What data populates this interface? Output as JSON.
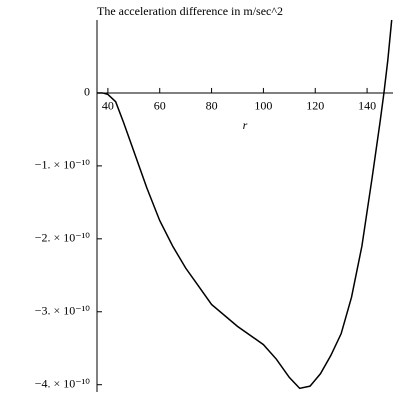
{
  "chart_data": {
    "type": "line",
    "title": "The acceleration difference in m/sec^2",
    "x_label": "r",
    "x": [
      36,
      38,
      40,
      43,
      46,
      50,
      55,
      60,
      65,
      70,
      75,
      80,
      90,
      100,
      105,
      110,
      114,
      118,
      122,
      126,
      130,
      134,
      138,
      142,
      145,
      146.5,
      148,
      149.5
    ],
    "series": [
      {
        "name": "acceleration difference",
        "color": "#000000",
        "values": [
          0,
          0,
          -2e-12,
          -1.2e-11,
          -4e-11,
          -8e-11,
          -1.3e-10,
          -1.75e-10,
          -2.1e-10,
          -2.4e-10,
          -2.65e-10,
          -2.9e-10,
          -3.2e-10,
          -3.45e-10,
          -3.65e-10,
          -3.9e-10,
          -4.05e-10,
          -4.02e-10,
          -3.85e-10,
          -3.6e-10,
          -3.3e-10,
          -2.8e-10,
          -2.1e-10,
          -1.15e-10,
          -4e-11,
          0,
          4.5e-11,
          1e-10
        ]
      }
    ],
    "xlim": [
      35.8,
      150
    ],
    "ylim": [
      -4.1e-10,
      1e-10
    ],
    "xticks": [
      40,
      60,
      80,
      100,
      120,
      140
    ],
    "yticks": [
      0,
      {
        "value": -1e-10,
        "label": "−1. × 10⁻¹⁰"
      },
      {
        "value": -2e-10,
        "label": "−2. × 10⁻¹⁰"
      },
      {
        "value": -3e-10,
        "label": "−3. × 10⁻¹⁰"
      },
      {
        "value": -4e-10,
        "label": "−4. × 10⁻¹⁰"
      }
    ],
    "grid": false
  }
}
